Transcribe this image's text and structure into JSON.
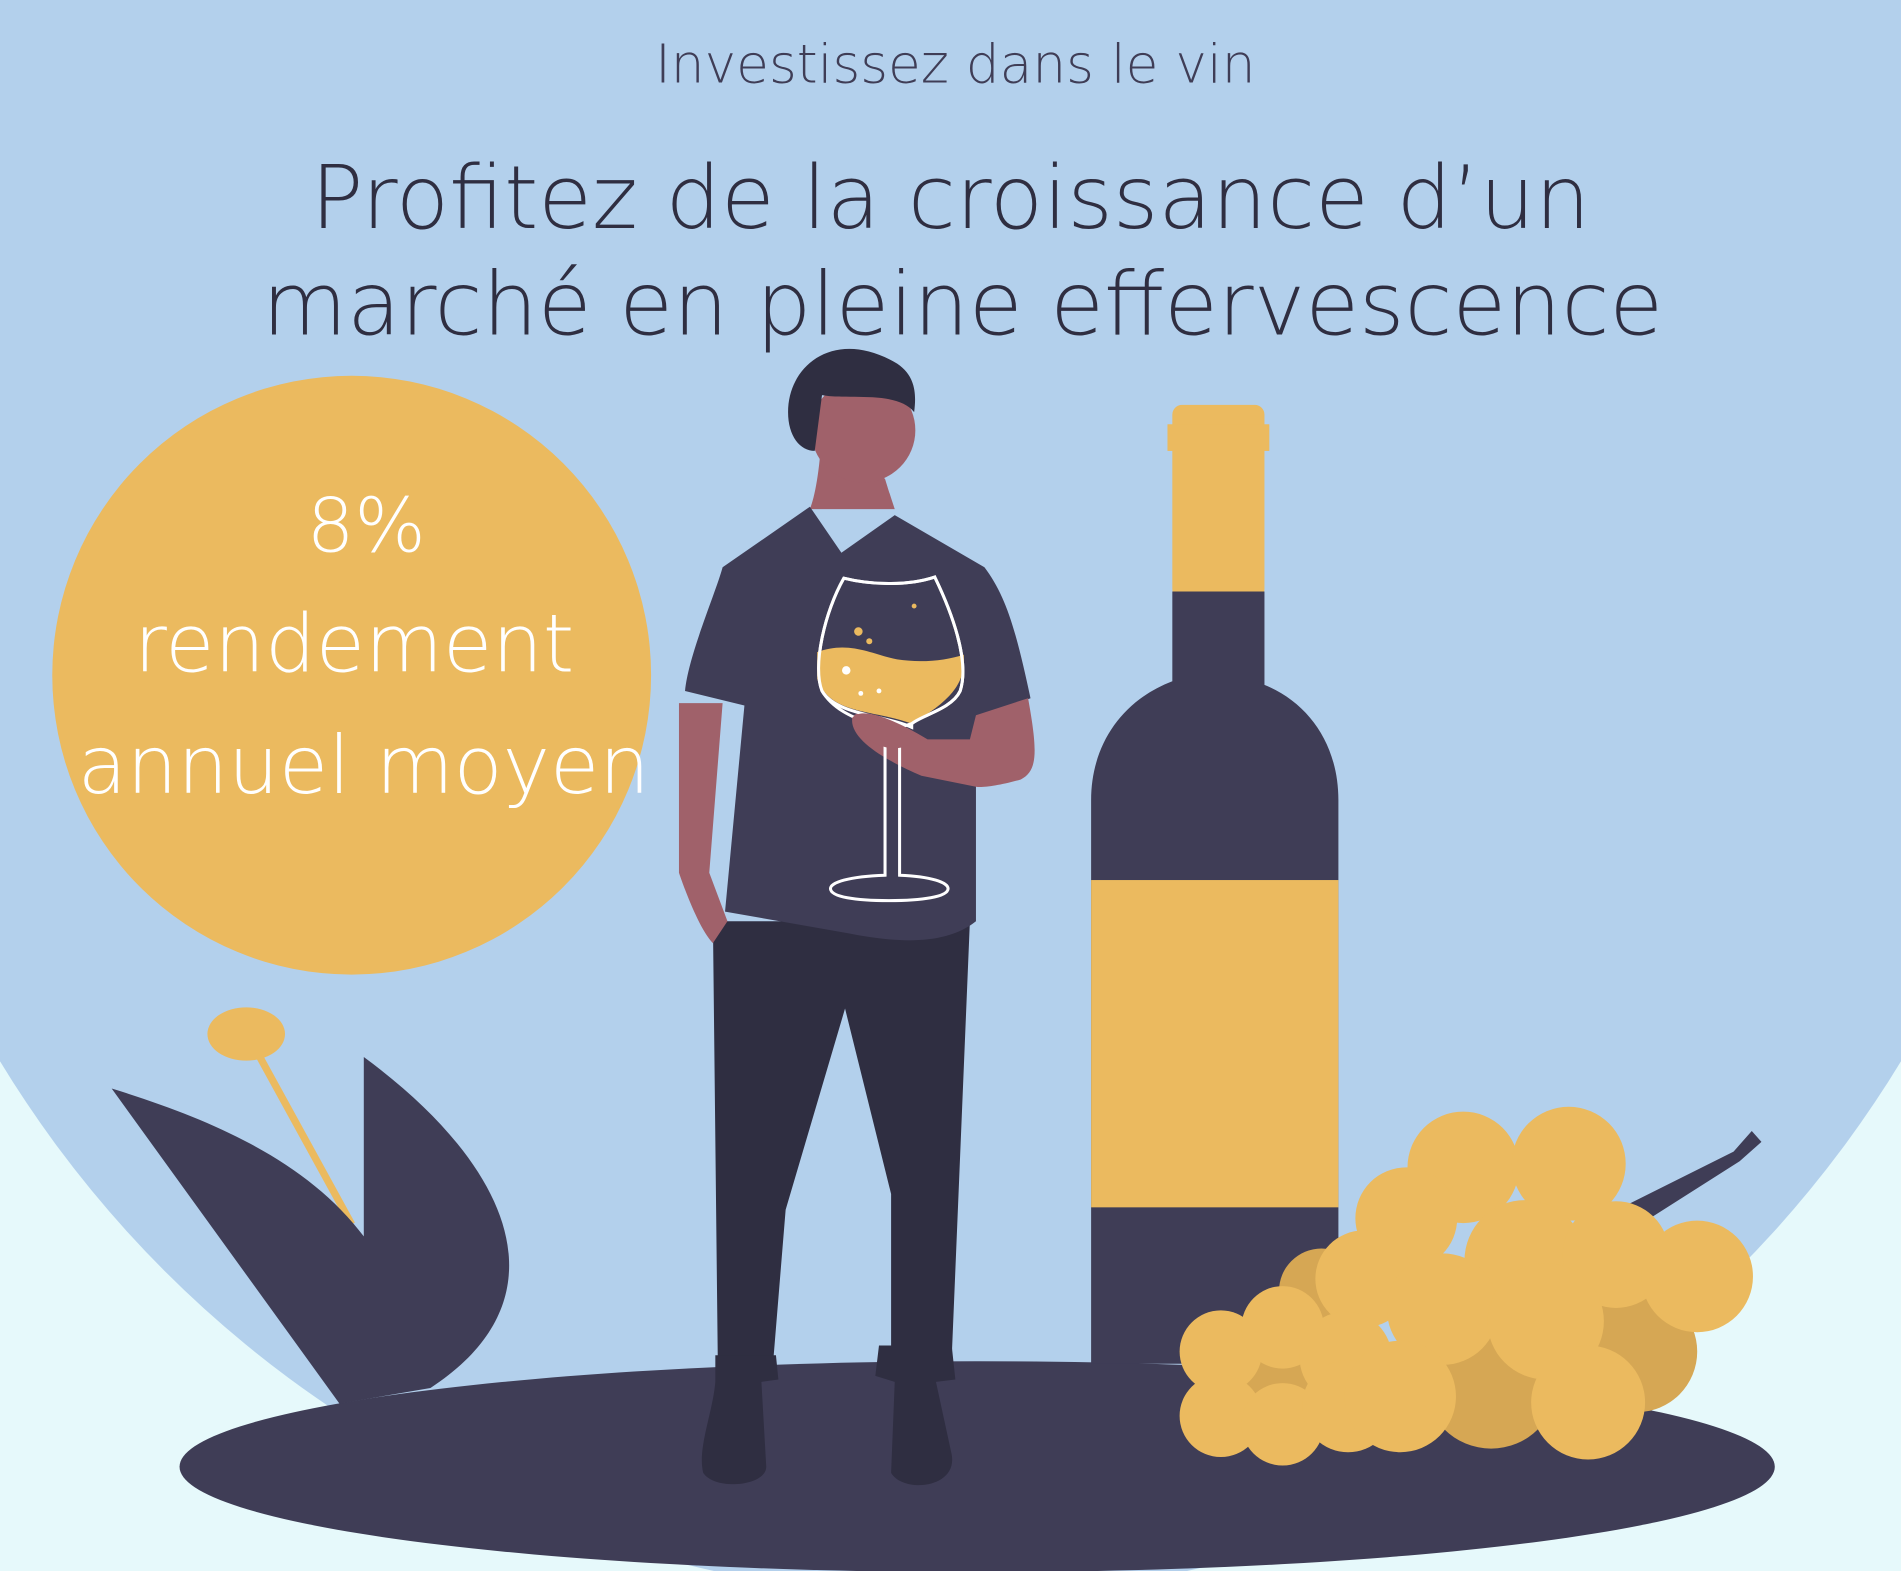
{
  "header": {
    "kicker": "Investissez dans le vin",
    "title_line1": "Profitez de la croissance d’un",
    "title_line2": "marché en pleine effervescence"
  },
  "stat_bubble": {
    "value": "8%",
    "label_line1": "rendement",
    "label_line2": "annuel moyen"
  },
  "colors": {
    "background": "#e6f9fb",
    "sky_circle": "#b3d0ec",
    "accent_gold": "#ebba5f",
    "dark": "#3f3d56",
    "text": "#2f2e41",
    "skin": "#a0616a"
  }
}
